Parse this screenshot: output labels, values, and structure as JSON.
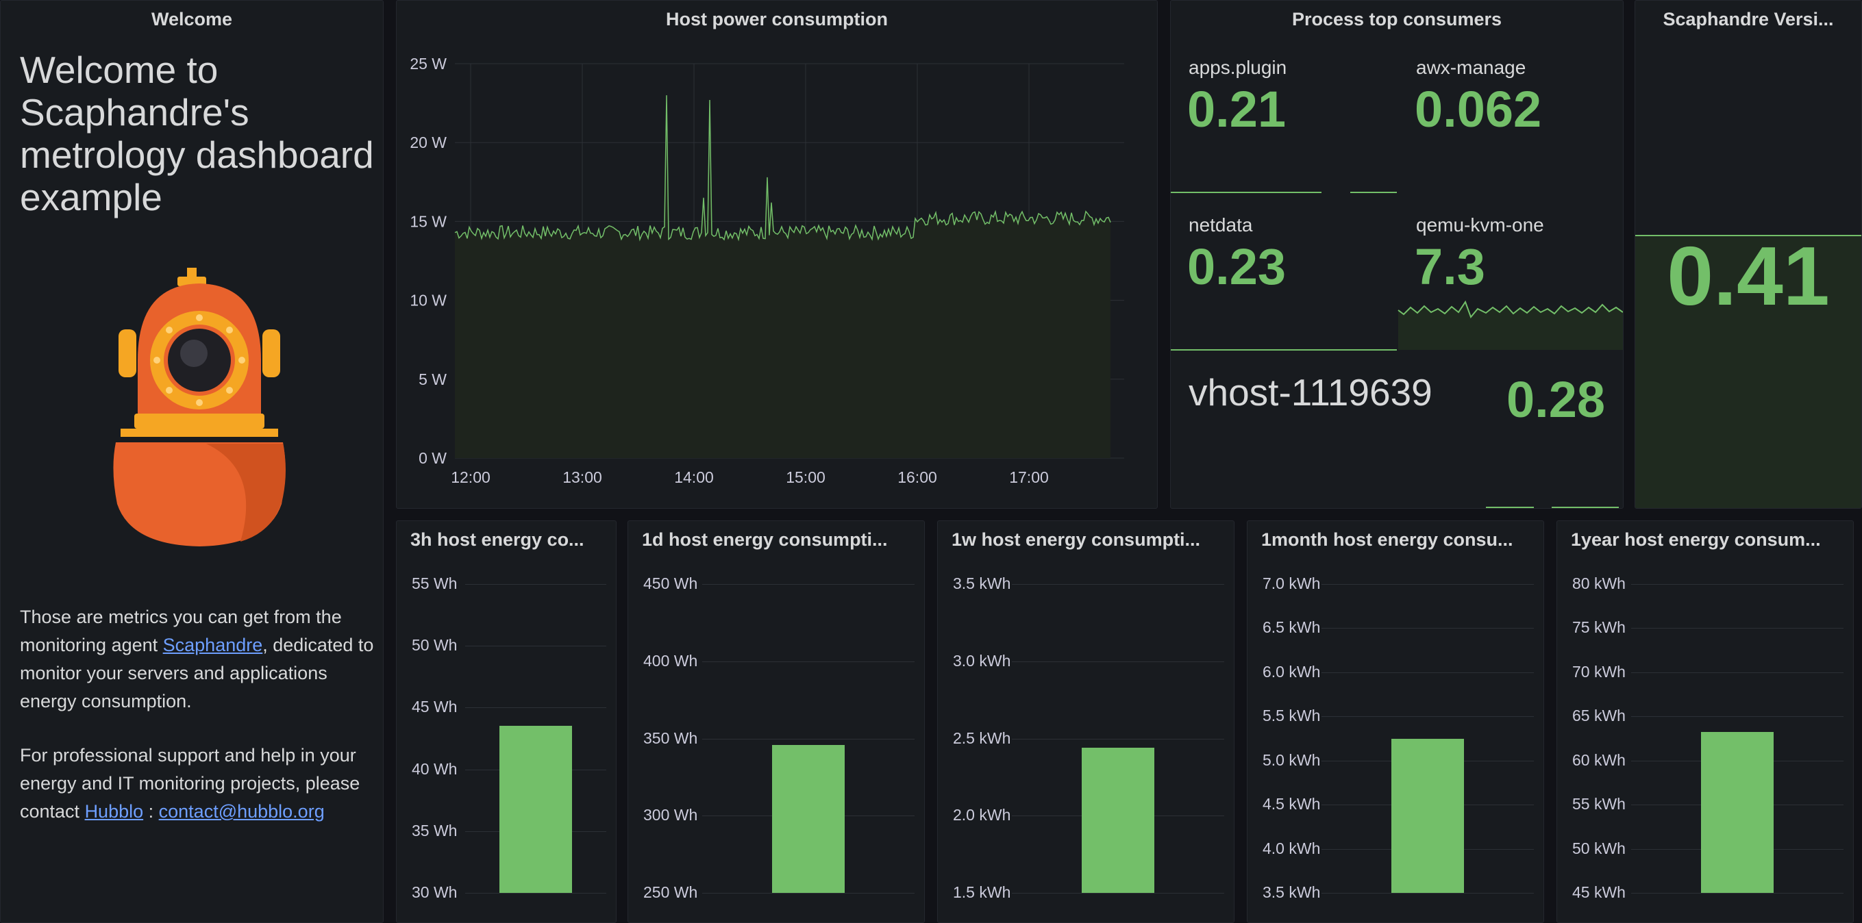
{
  "welcome": {
    "title": "Welcome",
    "heading": "Welcome to Scaphandre's metrology dashboard example",
    "para1_before": "Those are metrics you can get from the monitoring agent ",
    "para1_link": "Scaphandre",
    "para1_after": ", dedicated to monitor your servers and applications energy consumption.",
    "para2_before": "For professional support and help in your energy and IT monitoring projects, please contact ",
    "para2_link1": "Hubblo",
    "para2_sep": " : ",
    "para2_link2": "contact@hubblo.org"
  },
  "host_power": {
    "title": "Host power consumption",
    "y_ticks": [
      "25 W",
      "20 W",
      "15 W",
      "10 W",
      "5 W",
      "0 W"
    ],
    "x_ticks": [
      "12:00",
      "13:00",
      "14:00",
      "15:00",
      "16:00",
      "17:00"
    ],
    "color": "#73bf69"
  },
  "top_consumers": {
    "title": "Process top consumers",
    "stats": [
      {
        "name": "apps.plugin",
        "value": "0.21"
      },
      {
        "name": "awx-manage",
        "value": "0.062"
      },
      {
        "name": "netdata",
        "value": "0.23"
      },
      {
        "name": "qemu-kvm-one",
        "value": "7.3"
      },
      {
        "name": "vhost-1119639",
        "value": "0.28"
      }
    ]
  },
  "version": {
    "title": "Scaphandre Versi...",
    "value": "0.41"
  },
  "energy_panels": [
    {
      "title": "3h host energy co...",
      "ticks": [
        "55 Wh",
        "50 Wh",
        "45 Wh",
        "40 Wh",
        "35 Wh",
        "30 Wh"
      ],
      "bar_fraction": 0.54
    },
    {
      "title": "1d host energy consumpti...",
      "ticks": [
        "450 Wh",
        "400 Wh",
        "350 Wh",
        "300 Wh",
        "250 Wh"
      ],
      "bar_fraction": 0.48
    },
    {
      "title": "1w host energy consumpti...",
      "ticks": [
        "3.5 kWh",
        "3.0 kWh",
        "2.5 kWh",
        "2.0 kWh",
        "1.5 kWh"
      ],
      "bar_fraction": 0.47
    },
    {
      "title": "1month host energy consu...",
      "ticks": [
        "7.0 kWh",
        "6.5 kWh",
        "6.0 kWh",
        "5.5 kWh",
        "5.0 kWh",
        "4.5 kWh",
        "4.0 kWh",
        "3.5 kWh"
      ],
      "bar_fraction": 0.5
    },
    {
      "title": "1year host energy consum...",
      "ticks": [
        "80 kWh",
        "75 kWh",
        "70 kWh",
        "65 kWh",
        "60 kWh",
        "55 kWh",
        "50 kWh",
        "45 kWh"
      ],
      "bar_fraction": 0.52
    }
  ]
}
